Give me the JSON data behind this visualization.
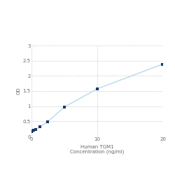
{
  "x": [
    0,
    0.156,
    0.313,
    0.625,
    1.25,
    2.5,
    5,
    10,
    20
  ],
  "y": [
    0.158,
    0.175,
    0.197,
    0.232,
    0.316,
    0.493,
    0.972,
    1.57,
    2.388
  ],
  "xlabel_line1": "Human TGM1",
  "xlabel_line2": "Concentration (ng/ml)",
  "ylabel": "OD",
  "xlim": [
    0,
    20
  ],
  "ylim": [
    0,
    3
  ],
  "yticks": [
    0,
    0.5,
    1.0,
    1.5,
    2.0,
    2.5,
    3.0
  ],
  "xticks": [
    0,
    10,
    20
  ],
  "line_color": "#b8d8ea",
  "marker_color": "#1a3a6b",
  "marker_size": 3.5,
  "grid_color": "#d0d0d0",
  "bg_color": "#ffffff",
  "tick_label_fontsize": 5.0,
  "axis_label_fontsize": 5.0
}
